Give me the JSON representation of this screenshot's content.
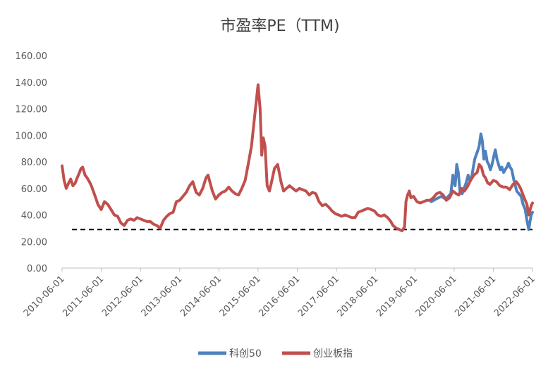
{
  "chart_data": {
    "type": "line",
    "title": "市盈率PE（TTM)",
    "xlabel": "",
    "ylabel": "",
    "ylim": [
      0,
      160
    ],
    "yticks": [
      "0.00",
      "20.00",
      "40.00",
      "60.00",
      "80.00",
      "100.00",
      "120.00",
      "140.00",
      "160.00"
    ],
    "xlim": [
      "2010-06-01",
      "2022-06-01"
    ],
    "xticks": [
      "2010-06-01",
      "2011-06-01",
      "2012-06-01",
      "2013-06-01",
      "2014-06-01",
      "2015-06-01",
      "2016-06-01",
      "2017-06-01",
      "2018-06-01",
      "2019-06-01",
      "2020-06-01",
      "2021-06-01",
      "2022-06-01"
    ],
    "grid": false,
    "legend_position": "bottom",
    "reference_line": {
      "style": "dashed",
      "color": "#000000",
      "y": 29,
      "x_start": "2010-09-01",
      "x_end": "2022-06-01"
    },
    "series": [
      {
        "name": "科创50",
        "color": "#4F81BD",
        "points": [
          [
            "2019-11-01",
            50
          ],
          [
            "2019-12-15",
            52
          ],
          [
            "2020-02-01",
            54
          ],
          [
            "2020-03-15",
            52
          ],
          [
            "2020-05-01",
            56
          ],
          [
            "2020-05-20",
            70
          ],
          [
            "2020-06-10",
            62
          ],
          [
            "2020-06-25",
            78
          ],
          [
            "2020-07-10",
            72
          ],
          [
            "2020-07-25",
            58
          ],
          [
            "2020-08-15",
            56
          ],
          [
            "2020-09-01",
            60
          ],
          [
            "2020-09-20",
            64
          ],
          [
            "2020-10-10",
            70
          ],
          [
            "2020-10-25",
            66
          ],
          [
            "2020-11-10",
            68
          ],
          [
            "2020-11-25",
            75
          ],
          [
            "2020-12-10",
            82
          ],
          [
            "2021-01-05",
            88
          ],
          [
            "2021-01-20",
            92
          ],
          [
            "2021-02-05",
            101
          ],
          [
            "2021-02-18",
            96
          ],
          [
            "2021-03-05",
            82
          ],
          [
            "2021-03-20",
            88
          ],
          [
            "2021-04-05",
            80
          ],
          [
            "2021-04-20",
            78
          ],
          [
            "2021-05-05",
            74
          ],
          [
            "2021-05-20",
            78
          ],
          [
            "2021-06-05",
            84
          ],
          [
            "2021-06-20",
            89
          ],
          [
            "2021-07-05",
            82
          ],
          [
            "2021-07-20",
            78
          ],
          [
            "2021-08-05",
            74
          ],
          [
            "2021-08-20",
            76
          ],
          [
            "2021-09-05",
            72
          ],
          [
            "2021-09-20",
            74
          ],
          [
            "2021-10-05",
            76
          ],
          [
            "2021-10-20",
            79
          ],
          [
            "2021-11-05",
            76
          ],
          [
            "2021-11-20",
            74
          ],
          [
            "2021-12-10",
            66
          ],
          [
            "2022-01-05",
            58
          ],
          [
            "2022-01-25",
            56
          ],
          [
            "2022-02-15",
            54
          ],
          [
            "2022-03-05",
            48
          ],
          [
            "2022-03-25",
            44
          ],
          [
            "2022-04-10",
            36
          ],
          [
            "2022-04-27",
            29
          ],
          [
            "2022-05-10",
            36
          ],
          [
            "2022-05-20",
            40
          ],
          [
            "2022-06-01",
            42
          ]
        ]
      },
      {
        "name": "创业板指",
        "color": "#C0504D",
        "points": [
          [
            "2010-06-01",
            77
          ],
          [
            "2010-06-20",
            66
          ],
          [
            "2010-07-10",
            60
          ],
          [
            "2010-08-01",
            64
          ],
          [
            "2010-08-20",
            67
          ],
          [
            "2010-09-10",
            62
          ],
          [
            "2010-10-01",
            64
          ],
          [
            "2010-10-20",
            68
          ],
          [
            "2010-11-10",
            72
          ],
          [
            "2010-11-25",
            75
          ],
          [
            "2010-12-10",
            76
          ],
          [
            "2011-01-01",
            70
          ],
          [
            "2011-01-20",
            68
          ],
          [
            "2011-02-10",
            65
          ],
          [
            "2011-03-01",
            62
          ],
          [
            "2011-04-01",
            55
          ],
          [
            "2011-05-01",
            48
          ],
          [
            "2011-06-01",
            44
          ],
          [
            "2011-07-01",
            50
          ],
          [
            "2011-08-01",
            48
          ],
          [
            "2011-09-01",
            44
          ],
          [
            "2011-10-01",
            40
          ],
          [
            "2011-11-01",
            39
          ],
          [
            "2011-12-01",
            34
          ],
          [
            "2012-01-01",
            32
          ],
          [
            "2012-02-01",
            36
          ],
          [
            "2012-03-01",
            37
          ],
          [
            "2012-04-01",
            36
          ],
          [
            "2012-05-01",
            38
          ],
          [
            "2012-06-01",
            37
          ],
          [
            "2012-07-01",
            36
          ],
          [
            "2012-08-01",
            35
          ],
          [
            "2012-09-01",
            35
          ],
          [
            "2012-10-01",
            33
          ],
          [
            "2012-11-01",
            32
          ],
          [
            "2012-12-01",
            30
          ],
          [
            "2013-01-01",
            36
          ],
          [
            "2013-02-01",
            39
          ],
          [
            "2013-03-01",
            41
          ],
          [
            "2013-04-01",
            42
          ],
          [
            "2013-05-01",
            50
          ],
          [
            "2013-06-01",
            51
          ],
          [
            "2013-07-01",
            54
          ],
          [
            "2013-08-01",
            57
          ],
          [
            "2013-09-01",
            62
          ],
          [
            "2013-10-01",
            65
          ],
          [
            "2013-11-01",
            57
          ],
          [
            "2013-12-01",
            55
          ],
          [
            "2014-01-01",
            60
          ],
          [
            "2014-02-01",
            68
          ],
          [
            "2014-02-20",
            70
          ],
          [
            "2014-03-15",
            63
          ],
          [
            "2014-04-01",
            58
          ],
          [
            "2014-05-01",
            52
          ],
          [
            "2014-06-01",
            55
          ],
          [
            "2014-07-01",
            57
          ],
          [
            "2014-08-01",
            58
          ],
          [
            "2014-09-01",
            61
          ],
          [
            "2014-10-01",
            58
          ],
          [
            "2014-11-01",
            56
          ],
          [
            "2014-12-01",
            55
          ],
          [
            "2015-01-01",
            60
          ],
          [
            "2015-02-01",
            66
          ],
          [
            "2015-03-01",
            78
          ],
          [
            "2015-04-01",
            92
          ],
          [
            "2015-05-01",
            115
          ],
          [
            "2015-06-01",
            138
          ],
          [
            "2015-06-20",
            120
          ],
          [
            "2015-07-05",
            85
          ],
          [
            "2015-07-20",
            98
          ],
          [
            "2015-08-05",
            92
          ],
          [
            "2015-08-25",
            62
          ],
          [
            "2015-09-15",
            58
          ],
          [
            "2015-10-05",
            65
          ],
          [
            "2015-11-01",
            75
          ],
          [
            "2015-12-01",
            78
          ],
          [
            "2016-01-01",
            65
          ],
          [
            "2016-01-25",
            58
          ],
          [
            "2016-02-20",
            60
          ],
          [
            "2016-03-20",
            62
          ],
          [
            "2016-04-20",
            60
          ],
          [
            "2016-05-20",
            58
          ],
          [
            "2016-06-20",
            60
          ],
          [
            "2016-07-20",
            59
          ],
          [
            "2016-08-20",
            58
          ],
          [
            "2016-09-20",
            55
          ],
          [
            "2016-10-20",
            57
          ],
          [
            "2016-11-20",
            56
          ],
          [
            "2016-12-20",
            50
          ],
          [
            "2017-01-20",
            47
          ],
          [
            "2017-02-20",
            48
          ],
          [
            "2017-03-20",
            46
          ],
          [
            "2017-04-20",
            43
          ],
          [
            "2017-05-20",
            41
          ],
          [
            "2017-06-20",
            40
          ],
          [
            "2017-07-20",
            39
          ],
          [
            "2017-08-20",
            40
          ],
          [
            "2017-09-20",
            39
          ],
          [
            "2017-10-20",
            38
          ],
          [
            "2017-11-20",
            38
          ],
          [
            "2017-12-20",
            42
          ],
          [
            "2018-01-20",
            43
          ],
          [
            "2018-02-20",
            44
          ],
          [
            "2018-03-20",
            45
          ],
          [
            "2018-04-20",
            44
          ],
          [
            "2018-05-20",
            43
          ],
          [
            "2018-06-20",
            40
          ],
          [
            "2018-07-20",
            39
          ],
          [
            "2018-08-20",
            40
          ],
          [
            "2018-09-20",
            38
          ],
          [
            "2018-10-20",
            35
          ],
          [
            "2018-11-10",
            32
          ],
          [
            "2018-12-10",
            30
          ],
          [
            "2019-01-10",
            29
          ],
          [
            "2019-02-01",
            28
          ],
          [
            "2019-02-25",
            31
          ],
          [
            "2019-03-10",
            50
          ],
          [
            "2019-03-25",
            55
          ],
          [
            "2019-04-10",
            58
          ],
          [
            "2019-04-25",
            53
          ],
          [
            "2019-05-20",
            54
          ],
          [
            "2019-06-20",
            50
          ],
          [
            "2019-07-20",
            49
          ],
          [
            "2019-08-20",
            50
          ],
          [
            "2019-09-20",
            51
          ],
          [
            "2019-10-20",
            51
          ],
          [
            "2019-11-20",
            53
          ],
          [
            "2019-12-20",
            56
          ],
          [
            "2020-01-20",
            57
          ],
          [
            "2020-02-20",
            55
          ],
          [
            "2020-03-20",
            51
          ],
          [
            "2020-04-20",
            53
          ],
          [
            "2020-05-20",
            58
          ],
          [
            "2020-06-20",
            56
          ],
          [
            "2020-07-15",
            55
          ],
          [
            "2020-08-10",
            60
          ],
          [
            "2020-09-05",
            58
          ],
          [
            "2020-10-01",
            61
          ],
          [
            "2020-11-01",
            66
          ],
          [
            "2020-12-01",
            70
          ],
          [
            "2021-01-01",
            72
          ],
          [
            "2021-01-20",
            78
          ],
          [
            "2021-02-10",
            76
          ],
          [
            "2021-03-01",
            70
          ],
          [
            "2021-03-20",
            68
          ],
          [
            "2021-04-10",
            64
          ],
          [
            "2021-05-01",
            63
          ],
          [
            "2021-06-01",
            66
          ],
          [
            "2021-07-01",
            65
          ],
          [
            "2021-08-01",
            62
          ],
          [
            "2021-09-01",
            61
          ],
          [
            "2021-10-01",
            61
          ],
          [
            "2021-11-01",
            59
          ],
          [
            "2021-12-01",
            63
          ],
          [
            "2022-01-01",
            65
          ],
          [
            "2022-01-20",
            63
          ],
          [
            "2022-02-10",
            60
          ],
          [
            "2022-03-01",
            56
          ],
          [
            "2022-03-20",
            52
          ],
          [
            "2022-04-10",
            48
          ],
          [
            "2022-04-27",
            40
          ],
          [
            "2022-05-10",
            44
          ],
          [
            "2022-05-20",
            47
          ],
          [
            "2022-06-01",
            49
          ]
        ]
      }
    ]
  }
}
